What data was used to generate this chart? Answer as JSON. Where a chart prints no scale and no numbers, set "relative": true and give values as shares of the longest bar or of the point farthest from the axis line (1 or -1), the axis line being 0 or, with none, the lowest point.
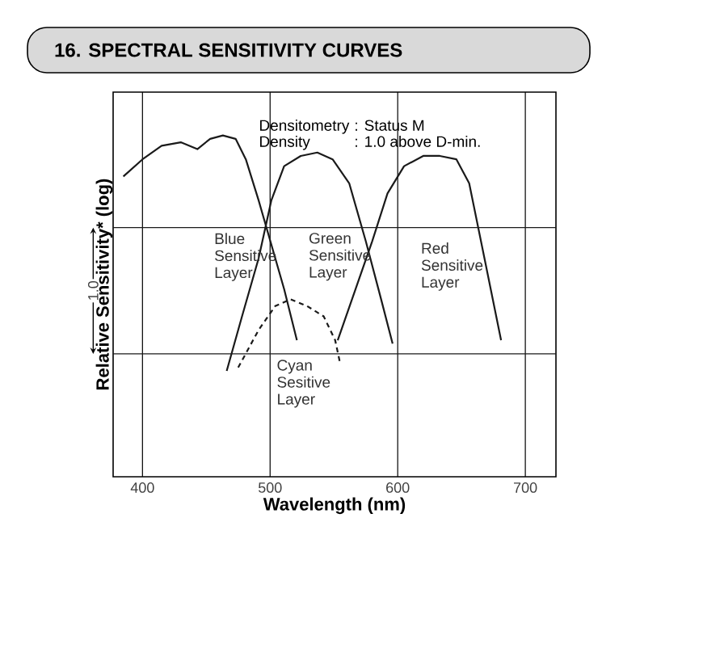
{
  "chart_data": {
    "type": "line",
    "title": "16.   SPECTRAL SENSITIVITY CURVES",
    "xlabel": "Wavelength (nm)",
    "ylabel": "Relative Sensitivity* (log)",
    "annotations": [
      "Densitometry",
      ": Status M",
      "Density",
      ": 1.0 above D-min.",
      "1.0"
    ],
    "xlim": [
      377,
      724
    ],
    "xticks": [
      400,
      500,
      600,
      700
    ],
    "relative": true,
    "grid": "x",
    "tick_labels": "x",
    "marker": "none",
    "ref_lines": [
      {
        "axis": "y",
        "value": 0.36,
        "color": "#1a1a1a"
      },
      {
        "axis": "y",
        "value": 0.73,
        "color": "#1a1a1a"
      }
    ],
    "series": [
      {
        "name": "Blue Sensitive Layer",
        "color": "#1a1a1a",
        "line_style": "solid",
        "x": [
          385,
          400,
          415,
          430,
          443,
          453,
          463,
          473,
          481,
          491,
          501,
          511,
          521
        ],
        "values": [
          0.88,
          0.93,
          0.97,
          0.98,
          0.96,
          0.99,
          1.0,
          0.99,
          0.93,
          0.81,
          0.68,
          0.55,
          0.4
        ]
      },
      {
        "name": "Green Sensitive Layer",
        "color": "#1a1a1a",
        "line_style": "solid",
        "x": [
          466,
          478,
          491,
          501,
          511,
          524,
          537,
          549,
          562,
          575,
          587,
          596
        ],
        "values": [
          0.31,
          0.47,
          0.64,
          0.81,
          0.91,
          0.94,
          0.95,
          0.93,
          0.86,
          0.69,
          0.52,
          0.39
        ]
      },
      {
        "name": "Red Sensitive Layer",
        "color": "#1a1a1a",
        "line_style": "solid",
        "x": [
          553,
          567,
          580,
          592,
          605,
          620,
          633,
          646,
          656,
          668,
          681
        ],
        "values": [
          0.4,
          0.55,
          0.69,
          0.83,
          0.91,
          0.94,
          0.94,
          0.93,
          0.86,
          0.64,
          0.4
        ]
      },
      {
        "name": "Cyan Sesitive Layer",
        "color": "#1a1a1a",
        "line_style": "dashed",
        "x": [
          475,
          491,
          504,
          516,
          529,
          542,
          551,
          555
        ],
        "values": [
          0.32,
          0.43,
          0.5,
          0.52,
          0.5,
          0.47,
          0.4,
          0.33
        ]
      }
    ]
  }
}
